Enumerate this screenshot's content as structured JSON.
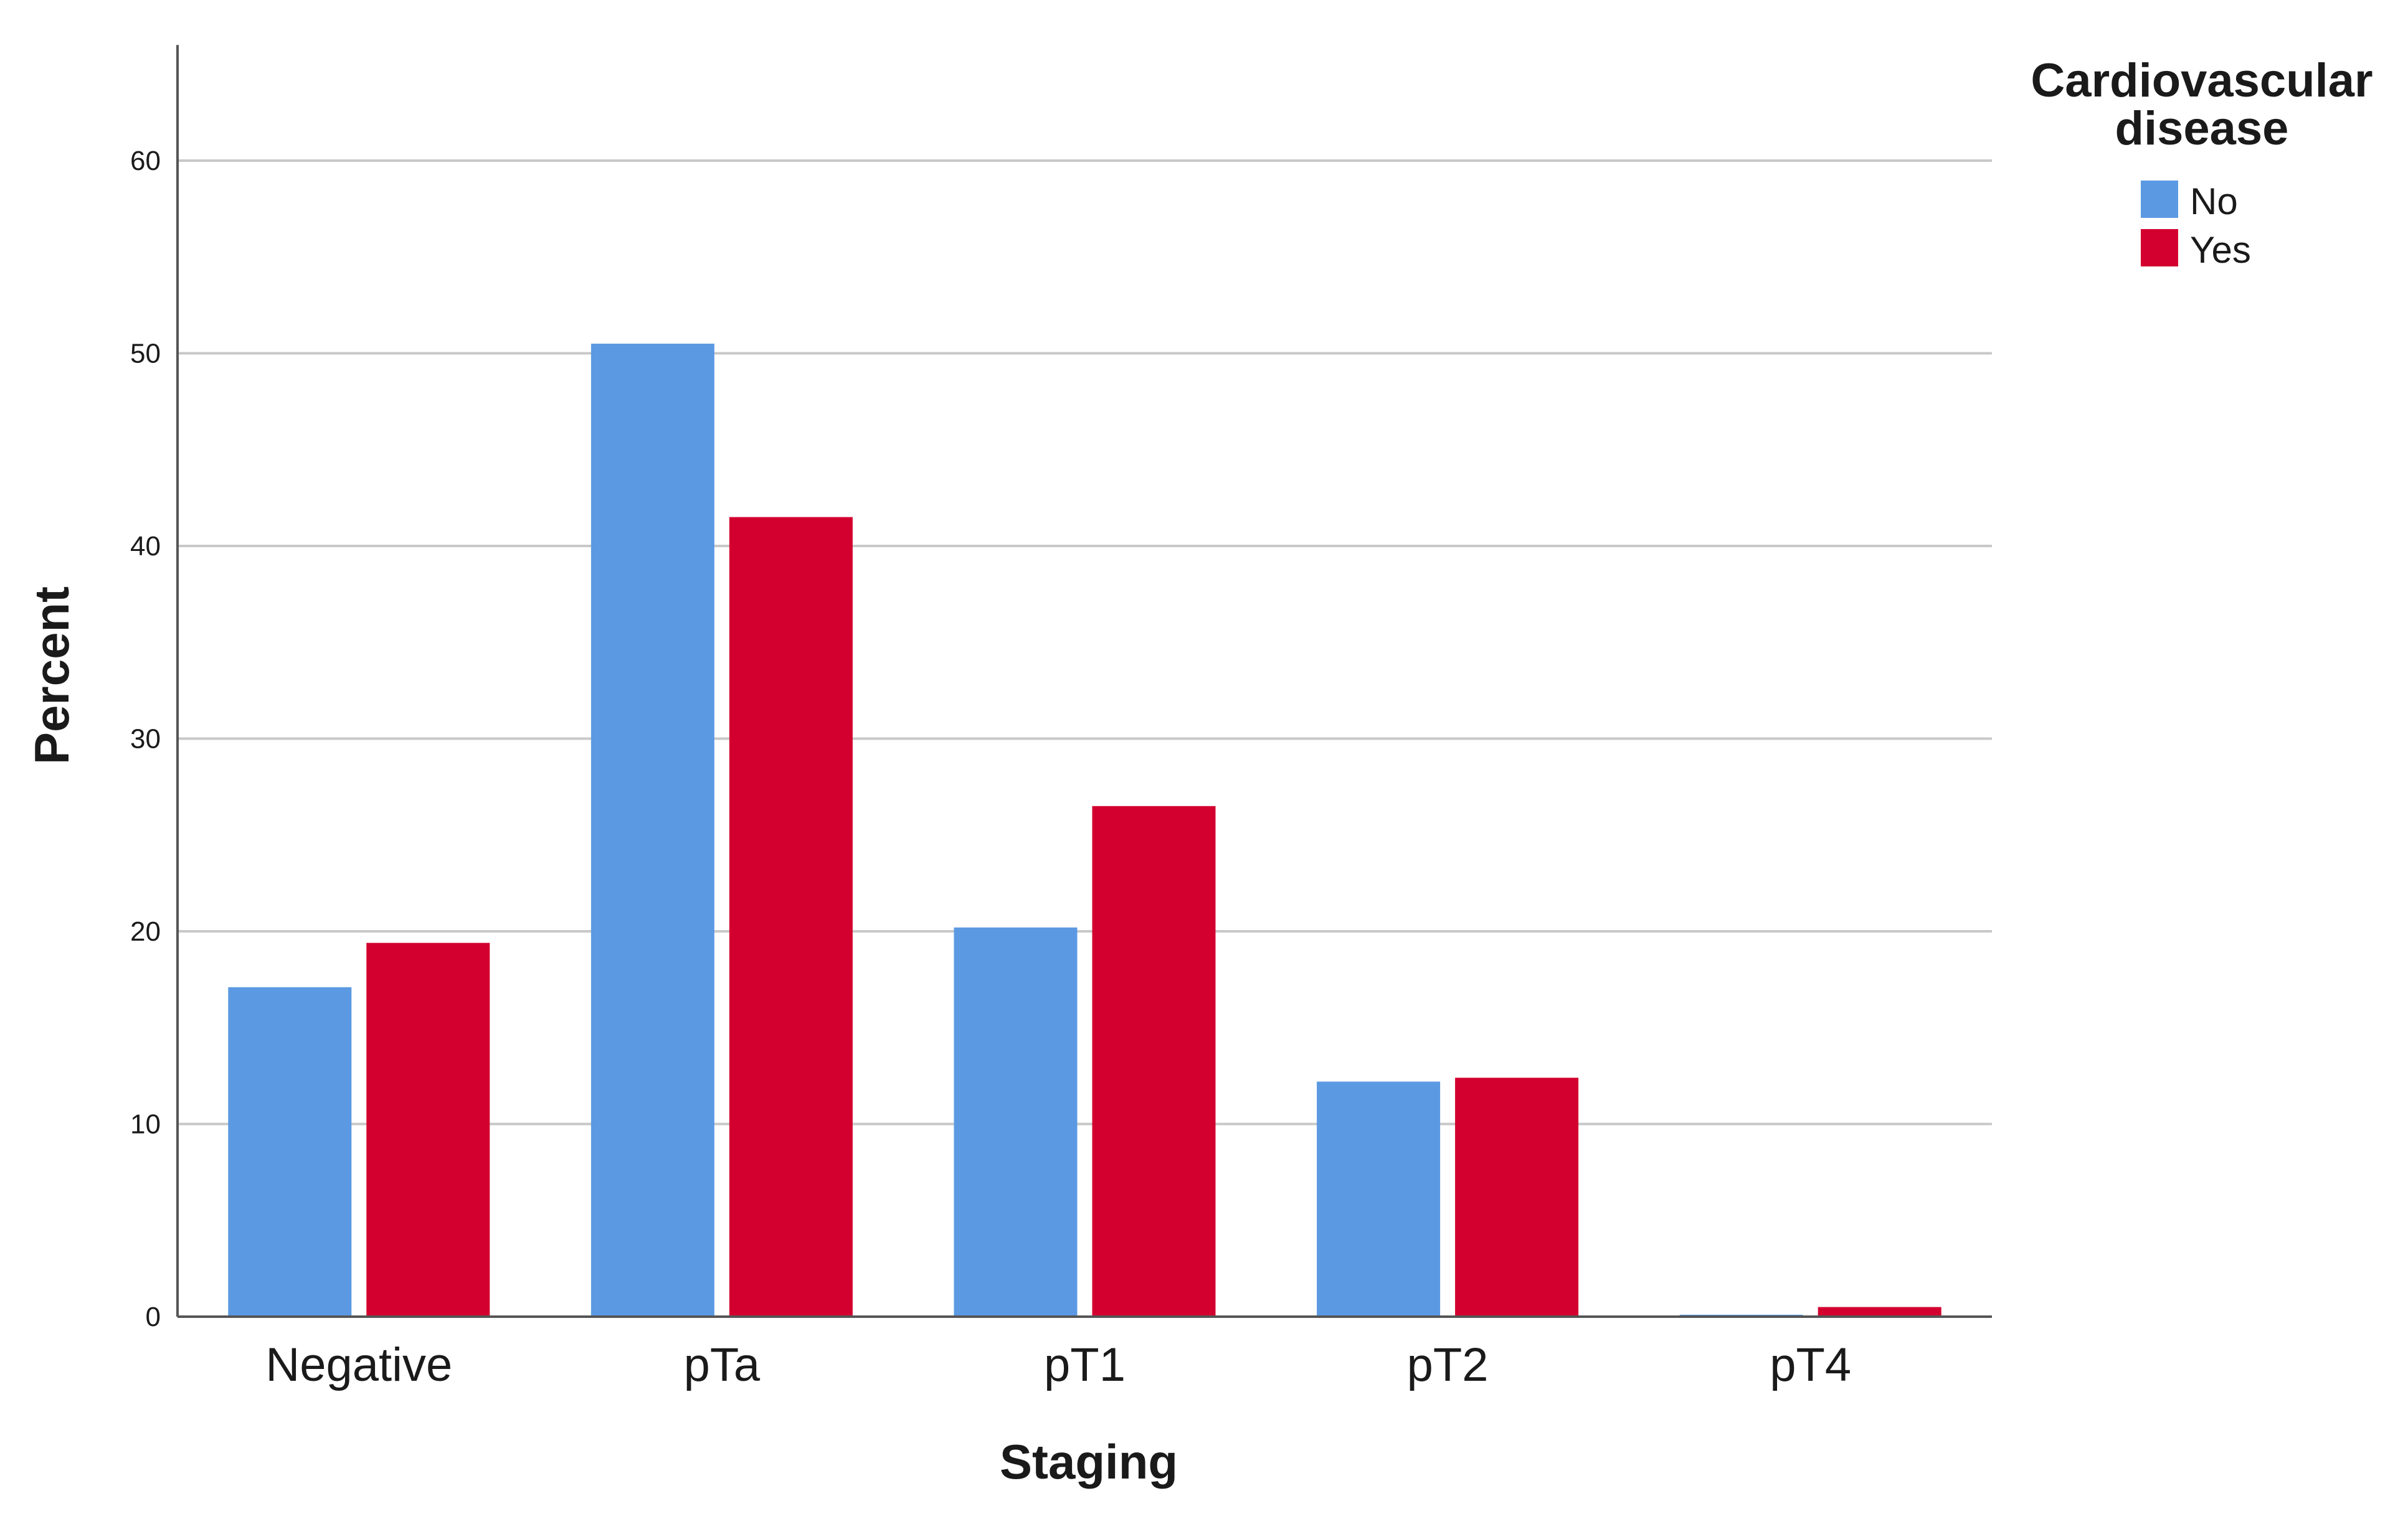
{
  "chart_data": {
    "type": "bar",
    "title": "",
    "xlabel": "Staging",
    "ylabel": "Percent",
    "ylim": [
      0,
      66
    ],
    "yticks": [
      0,
      10,
      20,
      30,
      40,
      50,
      60
    ],
    "grid": true,
    "categories": [
      "Negative",
      "pTa",
      "pT1",
      "pT2",
      "pT4"
    ],
    "legend": {
      "title_lines": [
        "Cardiovascular",
        "disease"
      ],
      "placement": "top-right"
    },
    "series": [
      {
        "name": "No",
        "color": "#5b9ae3",
        "values": [
          17.1,
          50.5,
          20.2,
          12.2,
          0.1
        ]
      },
      {
        "name": "Yes",
        "color": "#d3002f",
        "values": [
          19.4,
          41.5,
          26.5,
          12.4,
          0.5
        ]
      }
    ]
  }
}
